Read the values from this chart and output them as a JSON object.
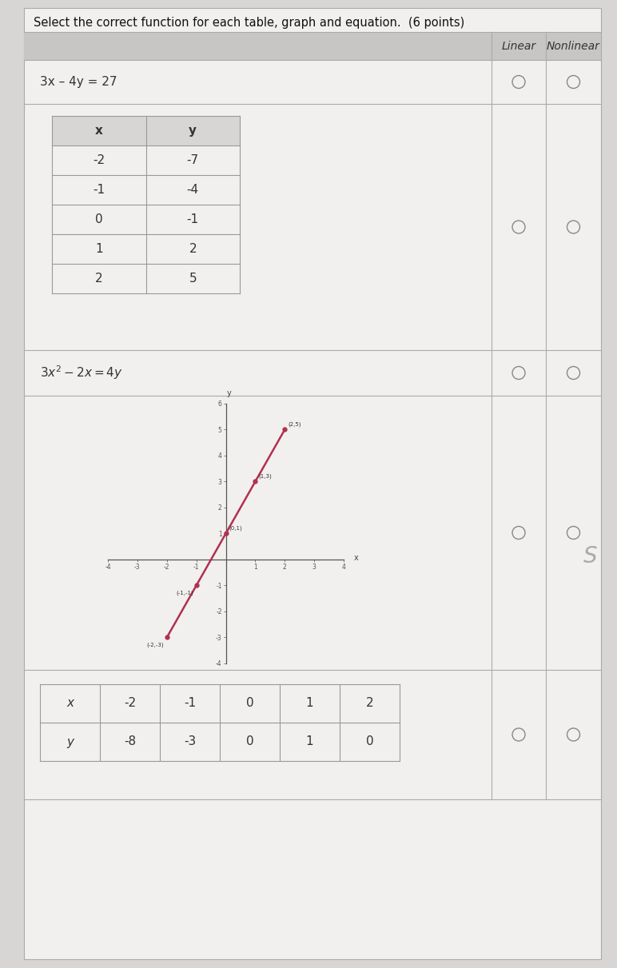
{
  "title": "Select the correct function for each table, graph and equation.  (6 points)",
  "bg_color": "#f2f0ee",
  "page_bg": "#d8d6d4",
  "col_header_linear": "Linear",
  "col_header_nonlinear": "Nonlinear",
  "row1_label": "3x – 4y = 27",
  "row2_table_data": [
    [
      -2,
      -7
    ],
    [
      -1,
      -4
    ],
    [
      0,
      -1
    ],
    [
      1,
      2
    ],
    [
      2,
      5
    ]
  ],
  "row3_label": "3x² – 2x = 4y",
  "graph_points": [
    [
      -2,
      -3
    ],
    [
      -1,
      -1
    ],
    [
      0,
      1
    ],
    [
      1,
      3
    ],
    [
      2,
      5
    ]
  ],
  "graph_color": "#b03050",
  "graph_xlim": [
    -4,
    4
  ],
  "graph_ylim": [
    -4,
    6
  ],
  "graph_point_labels": [
    [
      "(-2,-3)",
      -2,
      -3,
      "left"
    ],
    [
      "(-1,-1)",
      -1,
      -1,
      "left"
    ],
    [
      "(0,1)",
      0,
      1,
      "right"
    ],
    [
      "(1,3)",
      1,
      3,
      "right"
    ],
    [
      "(2,5)",
      2,
      5,
      "right"
    ]
  ],
  "row5_x": [
    -2,
    -1,
    0,
    1,
    2
  ],
  "row5_y": [
    -8,
    -3,
    0,
    1,
    0
  ],
  "circle_edge": "#888888",
  "circle_fill": "#f2f0ee",
  "font_color": "#333333",
  "table_border": "#aaaaaa",
  "inner_border": "#999999"
}
